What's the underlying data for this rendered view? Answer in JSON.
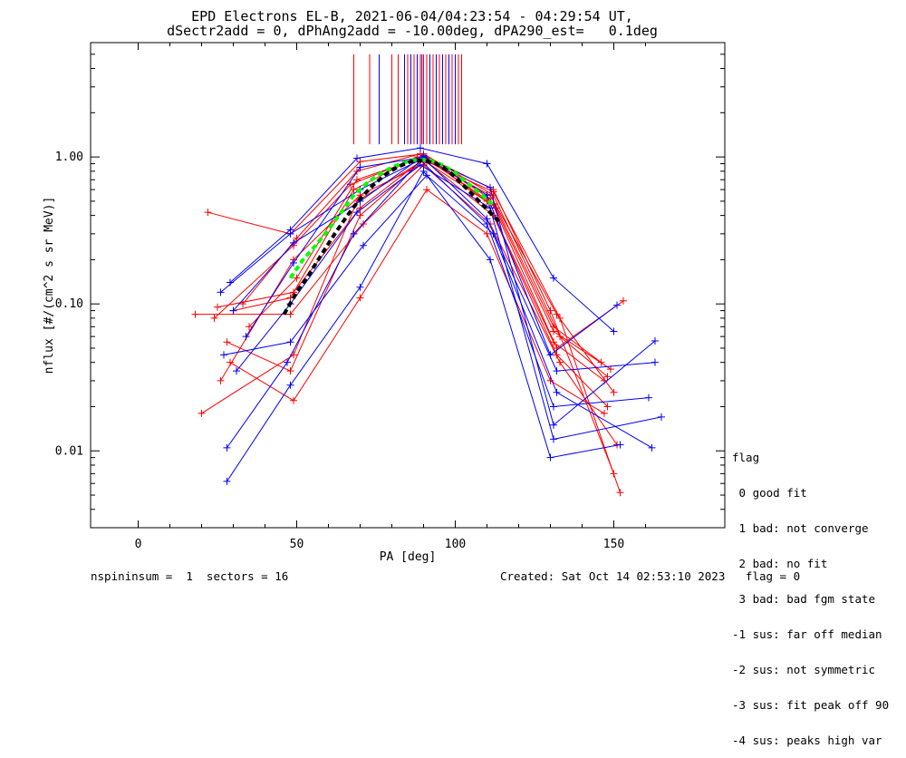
{
  "title": {
    "line1": "EPD Electrons EL-B, 2021-06-04/04:23:54 - 04:29:54 UT,",
    "line2": "dSectr2add = 0, dPhAng2add = -10.00deg, dPA290_est=   0.1deg"
  },
  "legend": {
    "header": "flag",
    "items": [
      " 0 good fit",
      " 1 bad: not converge",
      " 2 bad: no fit",
      " 3 bad: bad fgm state",
      "-1 sus: far off median",
      "-2 sus: not symmetric",
      "-3 sus: fit peak off 90",
      "-4 sus: peaks high var"
    ]
  },
  "footer": {
    "left": "nspininsum =  1  sectors = 16",
    "right": "Created: Sat Oct 14 02:53:10 2023   flag = 0"
  },
  "colors": {
    "red": "#ff0000",
    "blue": "#0000ff",
    "green": "#00ff00",
    "black": "#000000"
  },
  "chart_data": {
    "type": "line",
    "xlabel": "PA [deg]",
    "ylabel": "nflux [#/(cm^2 s sr MeV)]",
    "xlim": [
      -15,
      185
    ],
    "ylim": [
      0.003,
      6.0
    ],
    "yscale": "log",
    "xticks": [
      0,
      50,
      100,
      150
    ],
    "yticks": [
      0.01,
      0.1,
      1.0
    ],
    "ytick_labels": [
      "0.01",
      "0.10",
      "1.00"
    ],
    "peak_lines": {
      "red": [
        68,
        73,
        80,
        82,
        85,
        87,
        89,
        90,
        91,
        93,
        95,
        97,
        99,
        101,
        102
      ],
      "blue": [
        76,
        84,
        86,
        88,
        89.5,
        92,
        94,
        96,
        98,
        100
      ]
    },
    "series": [
      {
        "color": "red",
        "x": [
          22,
          48,
          70,
          90,
          112,
          133,
          148
        ],
        "y": [
          0.42,
          0.3,
          0.93,
          1.05,
          0.55,
          0.06,
          0.032
        ]
      },
      {
        "color": "red",
        "x": [
          30,
          48,
          68,
          88,
          112,
          133,
          152
        ],
        "y": [
          0.09,
          0.11,
          0.6,
          1.0,
          0.58,
          0.08,
          0.0052
        ]
      },
      {
        "color": "red",
        "x": [
          20,
          49,
          69,
          91,
          110,
          131,
          147
        ],
        "y": [
          0.018,
          0.045,
          0.5,
          0.98,
          0.5,
          0.055,
          0.03
        ]
      },
      {
        "color": "red",
        "x": [
          24,
          49,
          67,
          90,
          111,
          132,
          153
        ],
        "y": [
          0.08,
          0.25,
          0.65,
          1.02,
          0.52,
          0.05,
          0.105
        ]
      },
      {
        "color": "red",
        "x": [
          28,
          48,
          70,
          90,
          113,
          131,
          146
        ],
        "y": [
          0.055,
          0.035,
          0.4,
          0.95,
          0.45,
          0.07,
          0.04
        ]
      },
      {
        "color": "red",
        "x": [
          33,
          50,
          69,
          89,
          112,
          130,
          150
        ],
        "y": [
          0.1,
          0.28,
          0.8,
          1.05,
          0.6,
          0.09,
          0.007
        ]
      },
      {
        "color": "red",
        "x": [
          26,
          49,
          70,
          91,
          112,
          132,
          148
        ],
        "y": [
          0.03,
          0.2,
          0.55,
          0.92,
          0.4,
          0.045,
          0.02
        ]
      },
      {
        "color": "red",
        "x": [
          18,
          48,
          71,
          90,
          111,
          133,
          151
        ],
        "y": [
          0.085,
          0.085,
          0.35,
          0.88,
          0.35,
          0.04,
          0.011
        ]
      },
      {
        "color": "red",
        "x": [
          29,
          49,
          70,
          91,
          110,
          130,
          147
        ],
        "y": [
          0.04,
          0.022,
          0.11,
          0.6,
          0.3,
          0.03,
          0.018
        ]
      },
      {
        "color": "red",
        "x": [
          35,
          50,
          69,
          90,
          112,
          131,
          149
        ],
        "y": [
          0.07,
          0.15,
          0.7,
          1.0,
          0.48,
          0.065,
          0.036
        ]
      },
      {
        "color": "red",
        "x": [
          25,
          49,
          70,
          90,
          111,
          132,
          150
        ],
        "y": [
          0.095,
          0.12,
          0.45,
          0.97,
          0.55,
          0.085,
          0.025
        ]
      },
      {
        "color": "blue",
        "x": [
          29,
          48,
          69,
          89,
          110,
          131,
          150
        ],
        "y": [
          0.14,
          0.32,
          0.98,
          1.15,
          0.9,
          0.15,
          0.065
        ]
      },
      {
        "color": "blue",
        "x": [
          28,
          48,
          70,
          90,
          111,
          130,
          152
        ],
        "y": [
          0.0062,
          0.028,
          0.13,
          0.8,
          0.2,
          0.009,
          0.011
        ]
      },
      {
        "color": "blue",
        "x": [
          28,
          47,
          68,
          89,
          110,
          131,
          161
        ],
        "y": [
          0.0105,
          0.04,
          0.3,
          0.95,
          0.35,
          0.02,
          0.023
        ]
      },
      {
        "color": "blue",
        "x": [
          34,
          49,
          70,
          90,
          111,
          131,
          163
        ],
        "y": [
          0.06,
          0.19,
          0.85,
          1.0,
          0.62,
          0.015,
          0.056
        ]
      },
      {
        "color": "blue",
        "x": [
          27,
          48,
          71,
          91,
          112,
          132,
          162
        ],
        "y": [
          0.045,
          0.055,
          0.25,
          0.75,
          0.3,
          0.025,
          0.0105
        ]
      },
      {
        "color": "blue",
        "x": [
          30,
          49,
          70,
          90,
          110,
          130,
          151
        ],
        "y": [
          0.09,
          0.26,
          0.5,
          1.02,
          0.55,
          0.045,
          0.098
        ]
      },
      {
        "color": "blue",
        "x": [
          31,
          48,
          69,
          89,
          111,
          131,
          165
        ],
        "y": [
          0.035,
          0.1,
          0.42,
          0.88,
          0.45,
          0.012,
          0.017
        ]
      },
      {
        "color": "blue",
        "x": [
          26,
          48,
          70,
          90,
          110,
          132,
          163
        ],
        "y": [
          0.12,
          0.3,
          0.6,
          0.98,
          0.38,
          0.035,
          0.04
        ]
      },
      {
        "color": "green",
        "x": [
          48,
          52,
          56,
          60,
          64,
          68,
          72,
          76,
          80,
          84,
          88,
          92,
          96,
          100,
          104,
          108,
          112
        ],
        "y": [
          0.15,
          0.2,
          0.25,
          0.32,
          0.42,
          0.55,
          0.66,
          0.76,
          0.85,
          0.92,
          0.96,
          0.95,
          0.88,
          0.78,
          0.66,
          0.56,
          0.47
        ]
      },
      {
        "color": "black",
        "x": [
          46,
          50,
          54,
          58,
          62,
          66,
          70,
          74,
          78,
          82,
          86,
          90,
          94,
          98,
          102,
          106,
          110,
          114
        ],
        "y": [
          0.085,
          0.12,
          0.16,
          0.22,
          0.3,
          0.4,
          0.52,
          0.64,
          0.76,
          0.86,
          0.93,
          0.95,
          0.9,
          0.8,
          0.66,
          0.54,
          0.44,
          0.36
        ]
      }
    ]
  }
}
